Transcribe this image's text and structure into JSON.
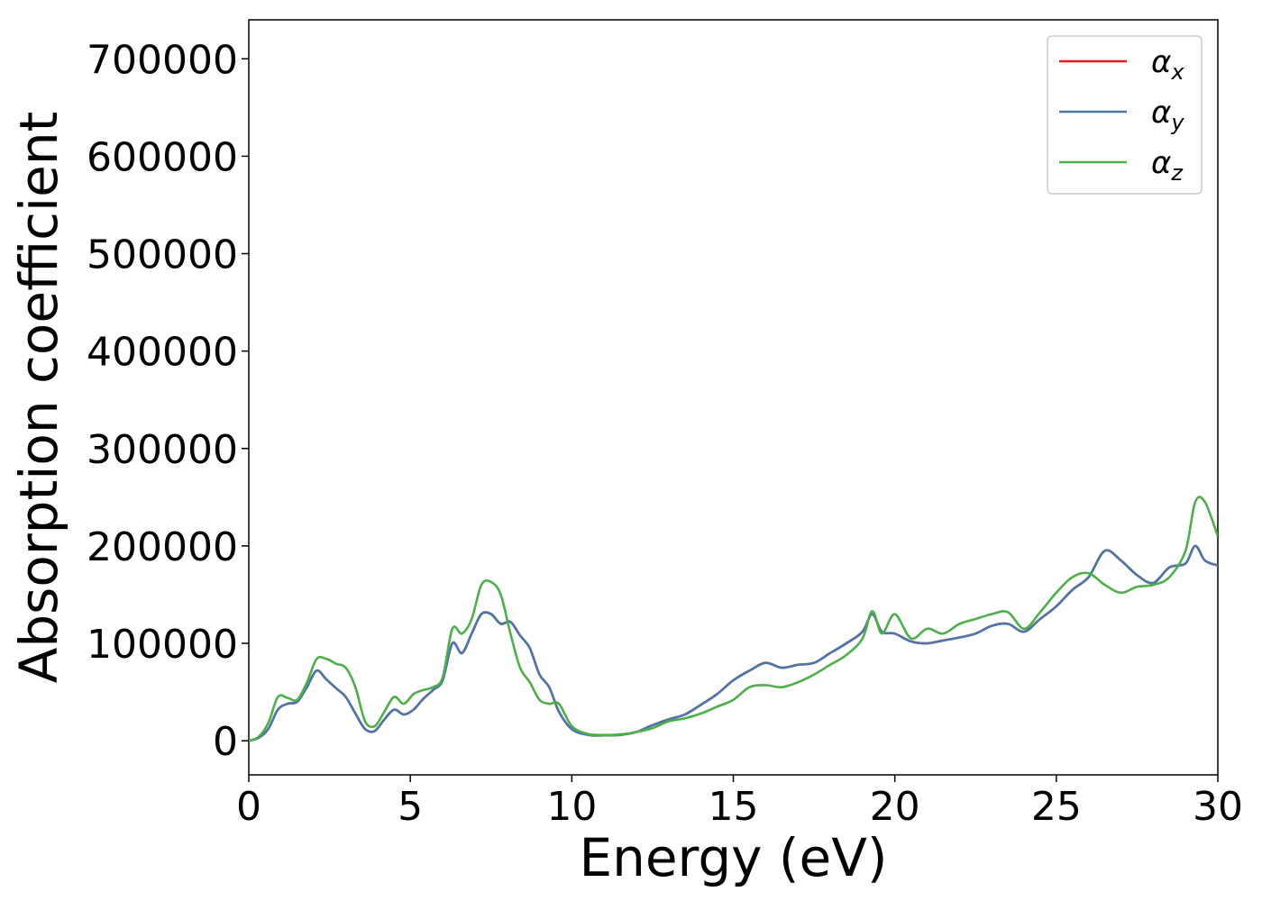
{
  "chart_data": {
    "type": "line",
    "xlabel": "Energy (eV)",
    "ylabel": "Absorption coefficient",
    "xlim": [
      0,
      30
    ],
    "ylim": [
      -35000,
      740000
    ],
    "xticks": [
      0,
      5,
      10,
      15,
      20,
      25,
      30
    ],
    "yticks": [
      0,
      100000,
      200000,
      300000,
      400000,
      500000,
      600000,
      700000
    ],
    "grid": false,
    "legend_position": "top-right",
    "series": [
      {
        "name": "α_x",
        "legend_main": "α",
        "legend_sub": "x",
        "color": "#e41a1c",
        "x": [
          0,
          0.3,
          0.6,
          0.9,
          1.2,
          1.5,
          1.8,
          2.1,
          2.4,
          2.7,
          3.0,
          3.3,
          3.6,
          3.9,
          4.2,
          4.5,
          4.8,
          5.1,
          5.4,
          5.7,
          6.0,
          6.3,
          6.6,
          6.9,
          7.2,
          7.5,
          7.8,
          8.1,
          8.4,
          8.7,
          9.0,
          9.3,
          9.6,
          10.0,
          10.5,
          11.0,
          11.5,
          12.0,
          12.5,
          13.0,
          13.5,
          14.0,
          14.5,
          15.0,
          15.5,
          16.0,
          16.5,
          17.0,
          17.5,
          18.0,
          18.5,
          19.0,
          19.3,
          19.6,
          20.0,
          20.5,
          21.0,
          21.5,
          22.0,
          22.5,
          23.0,
          23.5,
          24.0,
          24.5,
          25.0,
          25.5,
          26.0,
          26.5,
          27.0,
          27.5,
          28.0,
          28.5,
          29.0,
          29.3,
          29.6,
          30.0
        ],
        "y": [
          0,
          3000,
          12000,
          32000,
          38000,
          40000,
          55000,
          72000,
          63000,
          54000,
          45000,
          28000,
          12000,
          10000,
          22000,
          32000,
          27000,
          32000,
          43000,
          52000,
          62000,
          100000,
          90000,
          110000,
          130000,
          130000,
          120000,
          122000,
          108000,
          95000,
          68000,
          55000,
          30000,
          12000,
          6000,
          5500,
          6000,
          9000,
          16000,
          22000,
          27000,
          37000,
          48000,
          62000,
          72000,
          80000,
          75000,
          78000,
          80000,
          90000,
          100000,
          112000,
          130000,
          112000,
          110000,
          102000,
          100000,
          103000,
          106000,
          110000,
          118000,
          120000,
          112000,
          125000,
          138000,
          155000,
          168000,
          195000,
          185000,
          170000,
          162000,
          178000,
          182000,
          200000,
          185000,
          180000
        ]
      },
      {
        "name": "α_y",
        "legend_main": "α",
        "legend_sub": "y",
        "color": "#4a77a8",
        "x": [
          0,
          0.3,
          0.6,
          0.9,
          1.2,
          1.5,
          1.8,
          2.1,
          2.4,
          2.7,
          3.0,
          3.3,
          3.6,
          3.9,
          4.2,
          4.5,
          4.8,
          5.1,
          5.4,
          5.7,
          6.0,
          6.3,
          6.6,
          6.9,
          7.2,
          7.5,
          7.8,
          8.1,
          8.4,
          8.7,
          9.0,
          9.3,
          9.6,
          10.0,
          10.5,
          11.0,
          11.5,
          12.0,
          12.5,
          13.0,
          13.5,
          14.0,
          14.5,
          15.0,
          15.5,
          16.0,
          16.5,
          17.0,
          17.5,
          18.0,
          18.5,
          19.0,
          19.3,
          19.6,
          20.0,
          20.5,
          21.0,
          21.5,
          22.0,
          22.5,
          23.0,
          23.5,
          24.0,
          24.5,
          25.0,
          25.5,
          26.0,
          26.5,
          27.0,
          27.5,
          28.0,
          28.5,
          29.0,
          29.3,
          29.6,
          30.0
        ],
        "y": [
          0,
          3000,
          12000,
          32000,
          38000,
          40000,
          55000,
          72000,
          63000,
          54000,
          45000,
          28000,
          12000,
          10000,
          22000,
          32000,
          27000,
          32000,
          43000,
          52000,
          62000,
          100000,
          90000,
          110000,
          130000,
          130000,
          120000,
          122000,
          108000,
          95000,
          68000,
          55000,
          30000,
          12000,
          6000,
          5500,
          6000,
          9000,
          16000,
          22000,
          27000,
          37000,
          48000,
          62000,
          72000,
          80000,
          75000,
          78000,
          80000,
          90000,
          100000,
          112000,
          130000,
          112000,
          110000,
          102000,
          100000,
          103000,
          106000,
          110000,
          118000,
          120000,
          112000,
          125000,
          138000,
          155000,
          168000,
          195000,
          185000,
          170000,
          162000,
          178000,
          182000,
          200000,
          185000,
          180000
        ]
      },
      {
        "name": "α_z",
        "legend_main": "α",
        "legend_sub": "z",
        "color": "#4daf4a",
        "x": [
          0,
          0.3,
          0.6,
          0.9,
          1.2,
          1.5,
          1.8,
          2.1,
          2.4,
          2.7,
          3.0,
          3.3,
          3.6,
          3.9,
          4.2,
          4.5,
          4.8,
          5.1,
          5.4,
          5.7,
          6.0,
          6.3,
          6.6,
          6.9,
          7.2,
          7.5,
          7.8,
          8.1,
          8.4,
          8.7,
          9.0,
          9.3,
          9.6,
          10.0,
          10.5,
          11.0,
          11.5,
          12.0,
          12.5,
          13.0,
          13.5,
          14.0,
          14.5,
          15.0,
          15.5,
          16.0,
          16.5,
          17.0,
          17.5,
          18.0,
          18.5,
          19.0,
          19.3,
          19.6,
          20.0,
          20.5,
          21.0,
          21.5,
          22.0,
          22.5,
          23.0,
          23.5,
          24.0,
          24.5,
          25.0,
          25.5,
          26.0,
          26.5,
          27.0,
          27.5,
          28.0,
          28.5,
          29.0,
          29.3,
          29.6,
          30.0
        ],
        "y": [
          0,
          4000,
          18000,
          45000,
          44000,
          42000,
          60000,
          84000,
          84000,
          79000,
          75000,
          55000,
          20000,
          15000,
          30000,
          45000,
          38000,
          48000,
          52000,
          55000,
          65000,
          115000,
          110000,
          125000,
          160000,
          163000,
          150000,
          110000,
          75000,
          60000,
          42000,
          38000,
          38000,
          15000,
          7000,
          6000,
          6500,
          9000,
          13000,
          20000,
          23000,
          28000,
          35000,
          42000,
          55000,
          57000,
          55000,
          60000,
          68000,
          78000,
          88000,
          105000,
          133000,
          110000,
          130000,
          105000,
          115000,
          110000,
          120000,
          125000,
          130000,
          132000,
          115000,
          132000,
          152000,
          168000,
          172000,
          160000,
          152000,
          158000,
          160000,
          168000,
          195000,
          245000,
          245000,
          210000
        ]
      }
    ]
  }
}
